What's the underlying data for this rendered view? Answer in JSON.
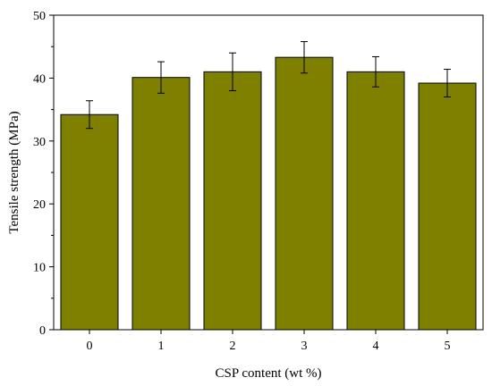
{
  "chart_data": {
    "type": "bar",
    "title": "",
    "xlabel": "CSP content (wt %)",
    "ylabel": "Tensile strength (MPa)",
    "categories": [
      "0",
      "1",
      "2",
      "3",
      "4",
      "5"
    ],
    "values": [
      34.2,
      40.1,
      41.0,
      43.3,
      41.0,
      39.2
    ],
    "errors": [
      2.2,
      2.5,
      3.0,
      2.5,
      2.4,
      2.2
    ],
    "ylim": [
      0,
      50
    ],
    "yticks": [
      "0",
      "10",
      "20",
      "30",
      "40",
      "50"
    ],
    "bar_color": "#808000",
    "grid": false,
    "legend": "none"
  }
}
